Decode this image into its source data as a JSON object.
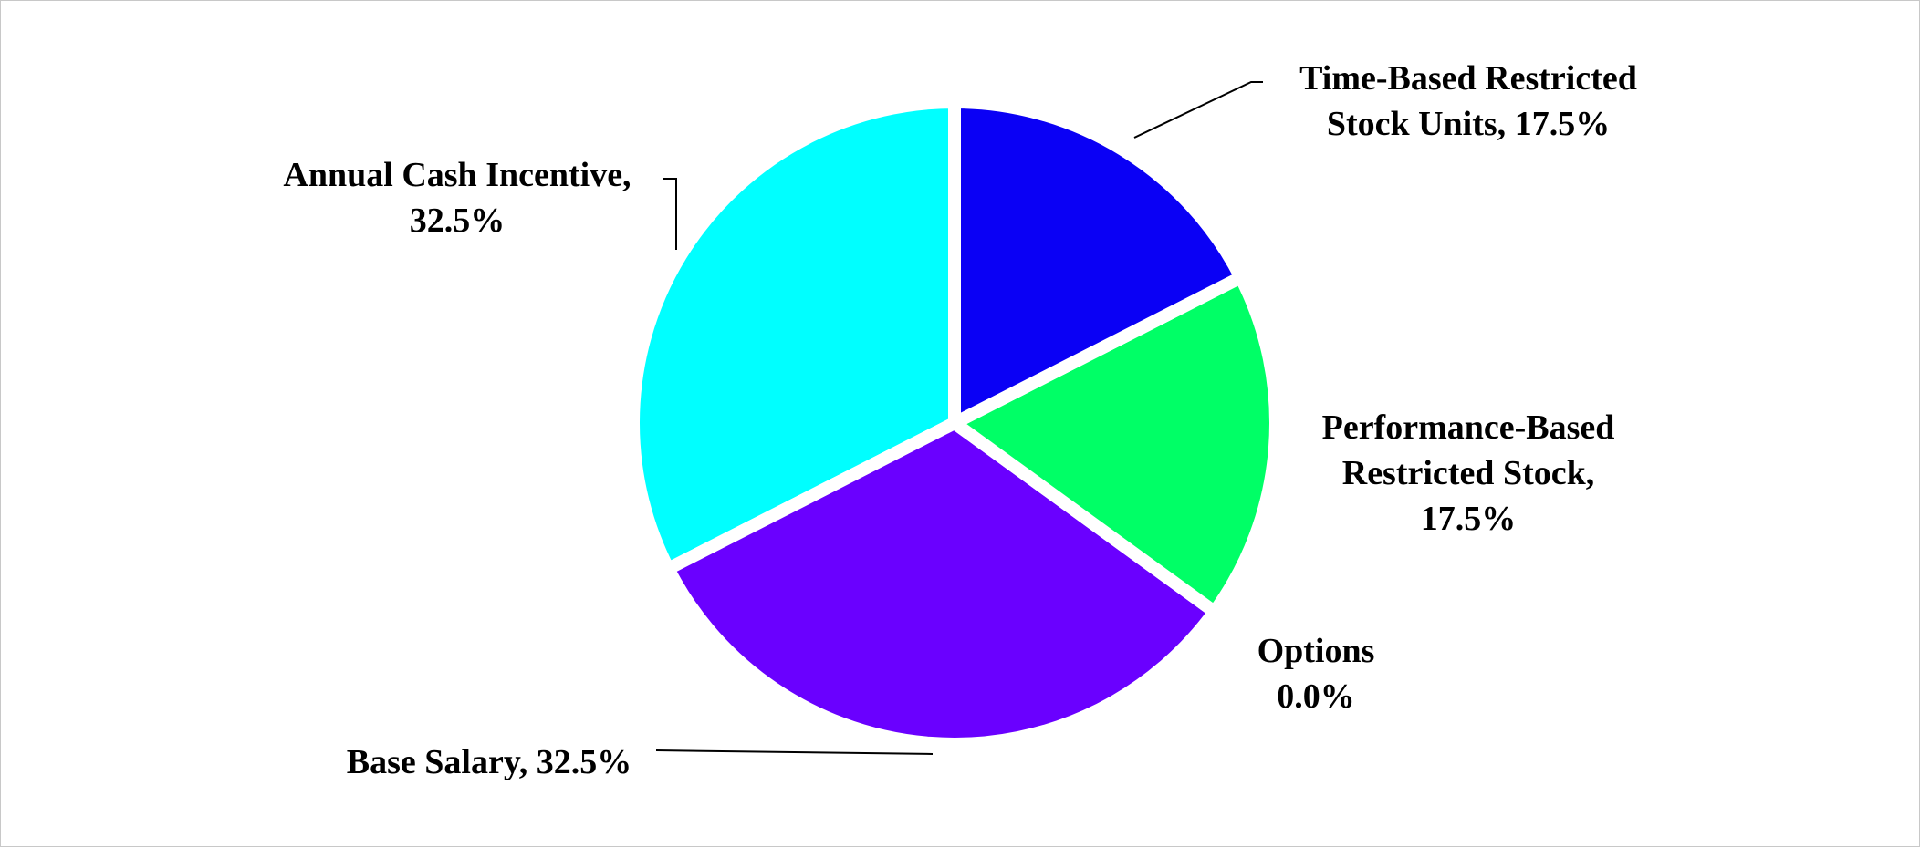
{
  "chart_data": {
    "type": "pie",
    "categories": [
      "Time-Based Restricted Stock Units,",
      "Performance-Based Restricted Stock,",
      "Options",
      "Base Salary,",
      "Annual Cash Incentive,"
    ],
    "values": [
      17.5,
      17.5,
      0.0,
      32.5,
      32.5
    ],
    "value_labels": [
      "17.5%",
      "17.5%",
      "0.0%",
      "32.5%",
      "32.5%"
    ],
    "colors": [
      "#0a00f5",
      "#00ff66",
      "#7f7f7f",
      "#6a00ff",
      "#00ffff"
    ]
  }
}
